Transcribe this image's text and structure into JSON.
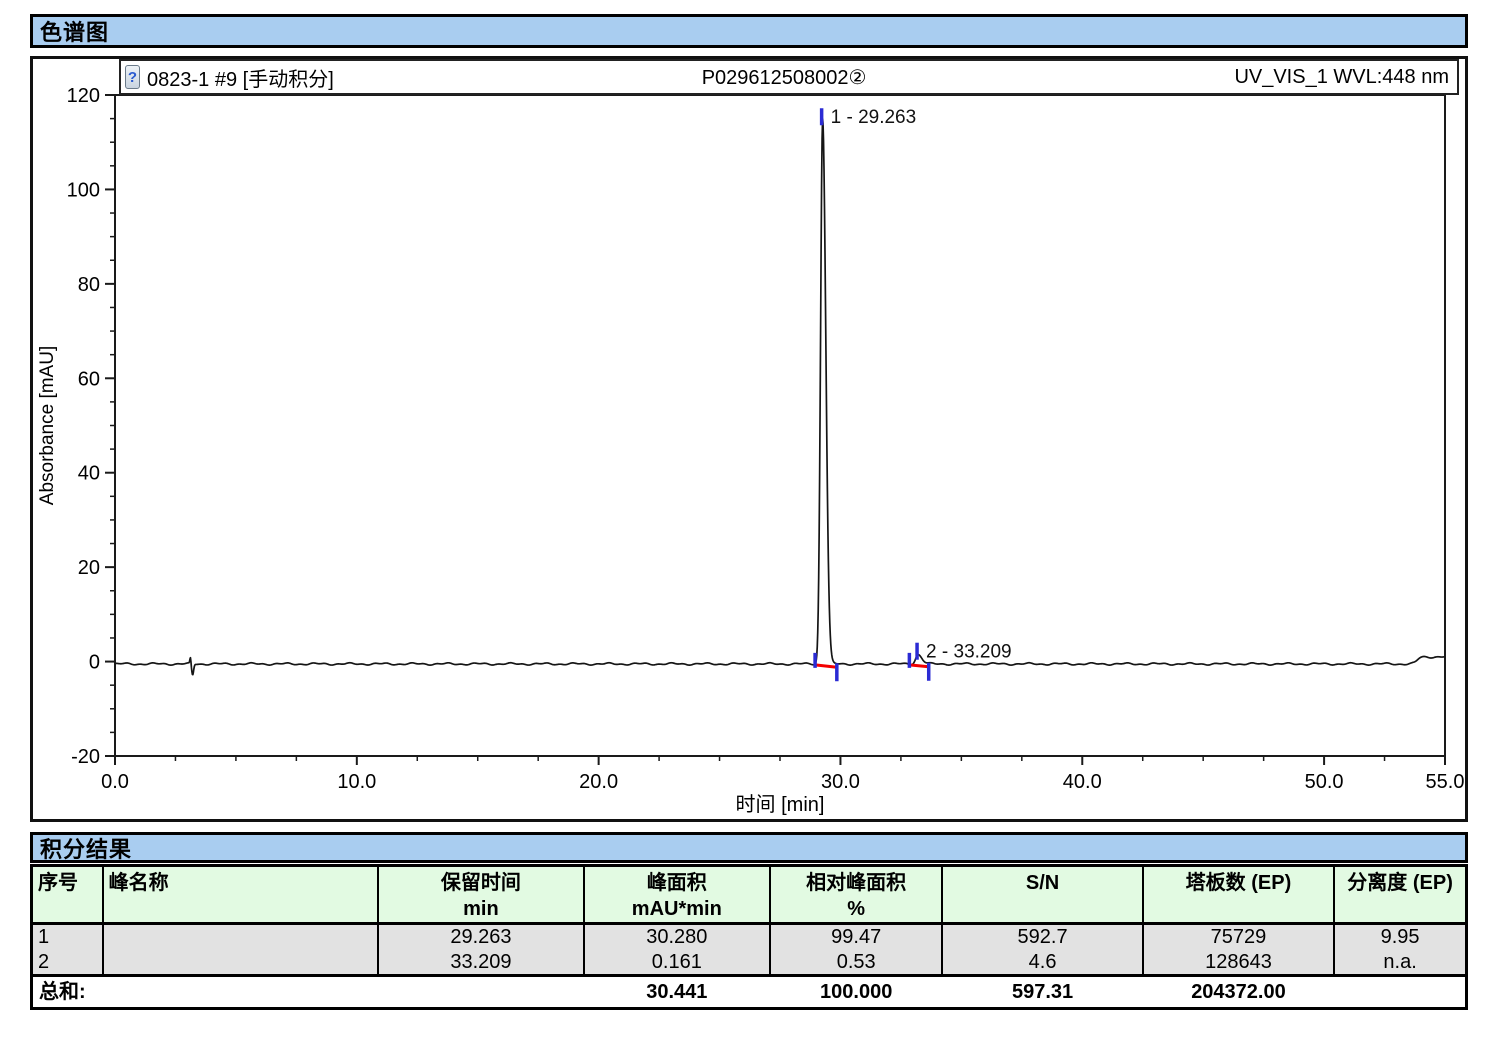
{
  "sections": {
    "chromatogram_title": "色谱图",
    "results_title": "积分结果"
  },
  "chart_header": {
    "icon_glyph": "?",
    "left": "0823-1 #9 [手动积分]",
    "center": "P029612508002②",
    "right": "UV_VIS_1 WVL:448 nm"
  },
  "chart_data": {
    "type": "line",
    "title": "P029612508002② UV_VIS_1 WVL:448 nm",
    "xlabel": "时间 [min]",
    "ylabel": "Absorbance [mAU]",
    "xlim": [
      0,
      55
    ],
    "ylim": [
      -20,
      120
    ],
    "grid": false,
    "x_major_ticks": [
      0,
      10,
      20,
      30,
      40,
      50,
      55
    ],
    "x_tick_labels": [
      "0.0",
      "10.0",
      "20.0",
      "30.0",
      "40.0",
      "50.0",
      "55.0"
    ],
    "x_minor_step": 2.5,
    "y_major_ticks": [
      -20,
      0,
      20,
      40,
      60,
      80,
      100,
      120
    ],
    "y_tick_labels": [
      "-20",
      "0",
      "20",
      "40",
      "60",
      "80",
      "100",
      "120"
    ],
    "y_minor_step": 5,
    "baseline_mAU": -0.5,
    "injection_disturbance_min": 3.2,
    "end_rise": {
      "time_min": 53.85,
      "level_mAU": 1.5
    },
    "peaks": [
      {
        "number": 1,
        "label": "1 - 29.263",
        "retention_min": 29.263,
        "height_mAU": 115.5,
        "sigma_left_min": 0.085,
        "sigma_right_min": 0.13,
        "label_level_mAU": 115.5,
        "integration": {
          "start_min": 28.95,
          "end_min": 29.85,
          "baseline_start_mAU": -0.7,
          "baseline_end_mAU": -1.2
        }
      },
      {
        "number": 2,
        "label": "2 - 33.209",
        "retention_min": 33.209,
        "height_mAU": 2.0,
        "sigma_left_min": 0.1,
        "sigma_right_min": 0.16,
        "label_level_mAU": 2.3,
        "integration": {
          "start_min": 32.85,
          "end_min": 33.65,
          "baseline_start_mAU": -0.7,
          "baseline_end_mAU": -1.1
        }
      }
    ],
    "colors": {
      "trace": "#151515",
      "integration_baseline": "#f40000",
      "peak_delimiter": "#2b2bd4",
      "axis": "#1a1a1a"
    }
  },
  "results_table": {
    "columns": [
      {
        "label": "序号",
        "unit": ""
      },
      {
        "label": "峰名称",
        "unit": ""
      },
      {
        "label": "保留时间",
        "unit": "min"
      },
      {
        "label": "峰面积",
        "unit": "mAU*min"
      },
      {
        "label": "相对峰面积",
        "unit": "%"
      },
      {
        "label": "S/N",
        "unit": ""
      },
      {
        "label": "塔板数 (EP)",
        "unit": ""
      },
      {
        "label": "分离度 (EP)",
        "unit": ""
      }
    ],
    "rows": [
      {
        "no": "1",
        "name": "",
        "retention": "29.263",
        "area": "30.280",
        "rel_area": "99.47",
        "sn": "592.7",
        "plates": "75729",
        "resolution": "9.95"
      },
      {
        "no": "2",
        "name": "",
        "retention": "33.209",
        "area": "0.161",
        "rel_area": "0.53",
        "sn": "4.6",
        "plates": "128643",
        "resolution": "n.a."
      }
    ],
    "total": {
      "label": "总和:",
      "retention": "",
      "area": "30.441",
      "rel_area": "100.000",
      "sn": "597.31",
      "plates": "204372.00",
      "resolution": ""
    }
  },
  "colors": {
    "section_bar_bg": "#a9cdf0",
    "table_header_bg": "#e2fae2",
    "table_row_bg": "#e2e2e2",
    "border": "#000000"
  }
}
